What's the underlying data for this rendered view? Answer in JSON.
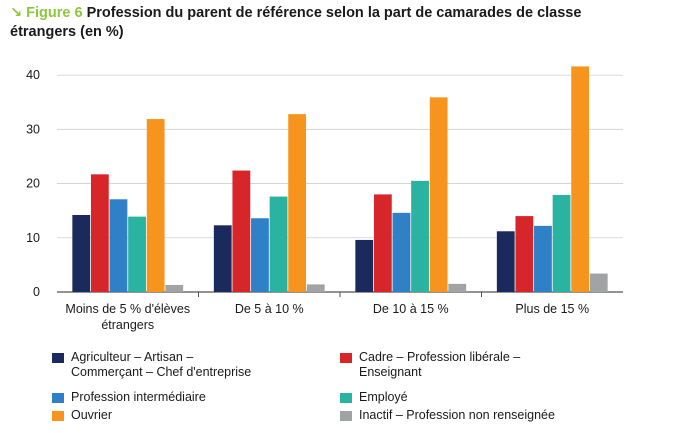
{
  "header": {
    "arrow": "↘",
    "figure_label": "Figure 6",
    "title": "Profession du parent de référence selon la part de camarades de classe étrangers (en %)"
  },
  "chart_data": {
    "type": "bar",
    "categories": [
      "Moins de 5 % d'élèves\nétrangers",
      "De 5 à 10 %",
      "De 10 à 15 %",
      "Plus de 15 %"
    ],
    "series": [
      {
        "name": "Agriculteur – Artisan –\nCommerçant – Chef d'entreprise",
        "color": "#1b2a5c",
        "values": [
          14.2,
          12.3,
          9.6,
          11.2
        ]
      },
      {
        "name": "Cadre – Profession libérale –\nEnseignant",
        "color": "#d7262a",
        "values": [
          21.7,
          22.4,
          18.0,
          14.0
        ]
      },
      {
        "name": "Profession intermédiaire",
        "color": "#2f80c7",
        "values": [
          17.1,
          13.6,
          14.6,
          12.2
        ]
      },
      {
        "name": "Employé",
        "color": "#2ab3a0",
        "values": [
          13.9,
          17.6,
          20.5,
          17.9
        ]
      },
      {
        "name": "Ouvrier",
        "color": "#f7941d",
        "values": [
          31.9,
          32.8,
          35.9,
          41.6
        ]
      },
      {
        "name": "Inactif – Profession non renseignée",
        "color": "#a2a3a5",
        "values": [
          1.3,
          1.4,
          1.5,
          3.4
        ]
      }
    ],
    "yticks": [
      "0",
      "10",
      "20",
      "30",
      "40"
    ],
    "ylim": [
      0,
      45
    ],
    "grid": true,
    "legend_position": "bottom"
  }
}
